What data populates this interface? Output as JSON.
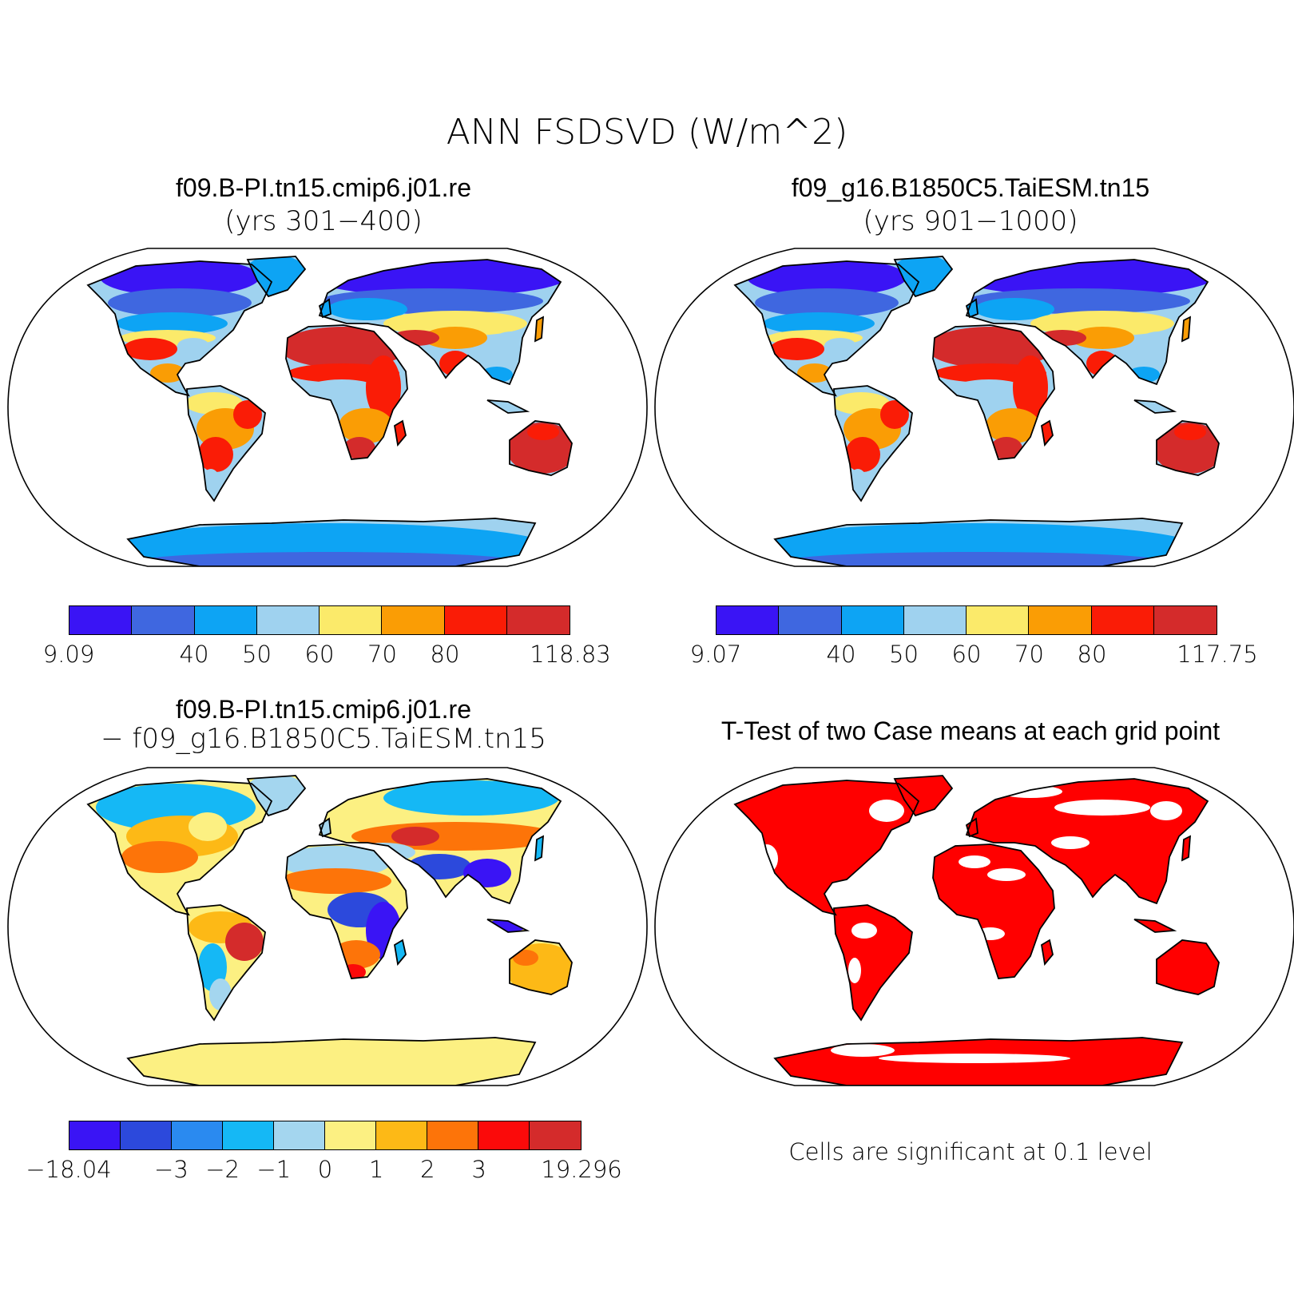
{
  "figure": {
    "title": "ANN FSDSVD (W/m^2)"
  },
  "panels": [
    {
      "id": "case1",
      "title": "f09.B-PI.tn15.cmip6.j01.re",
      "subtitle": "(yrs 301−400)",
      "colorbar": {
        "colors": [
          "#3a14f5",
          "#3f67e0",
          "#0da4f4",
          "#9fd2ef",
          "#fbea6a",
          "#fa9d05",
          "#fa1c06",
          "#d42b2b"
        ],
        "labels": [
          "9.09",
          "",
          "40",
          "50",
          "60",
          "70",
          "80",
          "",
          "118.83"
        ]
      }
    },
    {
      "id": "case2",
      "title": "f09_g16.B1850C5.TaiESM.tn15",
      "subtitle": "(yrs 901−1000)",
      "colorbar": {
        "colors": [
          "#3a14f5",
          "#3f67e0",
          "#0da4f4",
          "#9fd2ef",
          "#fbea6a",
          "#fa9d05",
          "#fa1c06",
          "#d42b2b"
        ],
        "labels": [
          "9.07",
          "",
          "40",
          "50",
          "60",
          "70",
          "80",
          "",
          "117.75"
        ]
      }
    },
    {
      "id": "diff",
      "title": "f09.B-PI.tn15.cmip6.j01.re",
      "subtitle": "− f09_g16.B1850C5.TaiESM.tn15",
      "colorbar": {
        "colors": [
          "#3a14f5",
          "#2c49dc",
          "#2a8af0",
          "#15b8f5",
          "#a4d6ef",
          "#fcf082",
          "#fdb916",
          "#fd7409",
          "#fb0a0a",
          "#d42b2b"
        ],
        "labels": [
          "−18.04",
          "",
          "−3",
          "−2",
          "−1",
          "0",
          "1",
          "2",
          "3",
          "",
          "19.296"
        ]
      }
    },
    {
      "id": "ttest",
      "title": "T-Test of two Case means at each grid point",
      "note": "Cells are significant at 0.1 level",
      "color": "#ff0000"
    }
  ]
}
